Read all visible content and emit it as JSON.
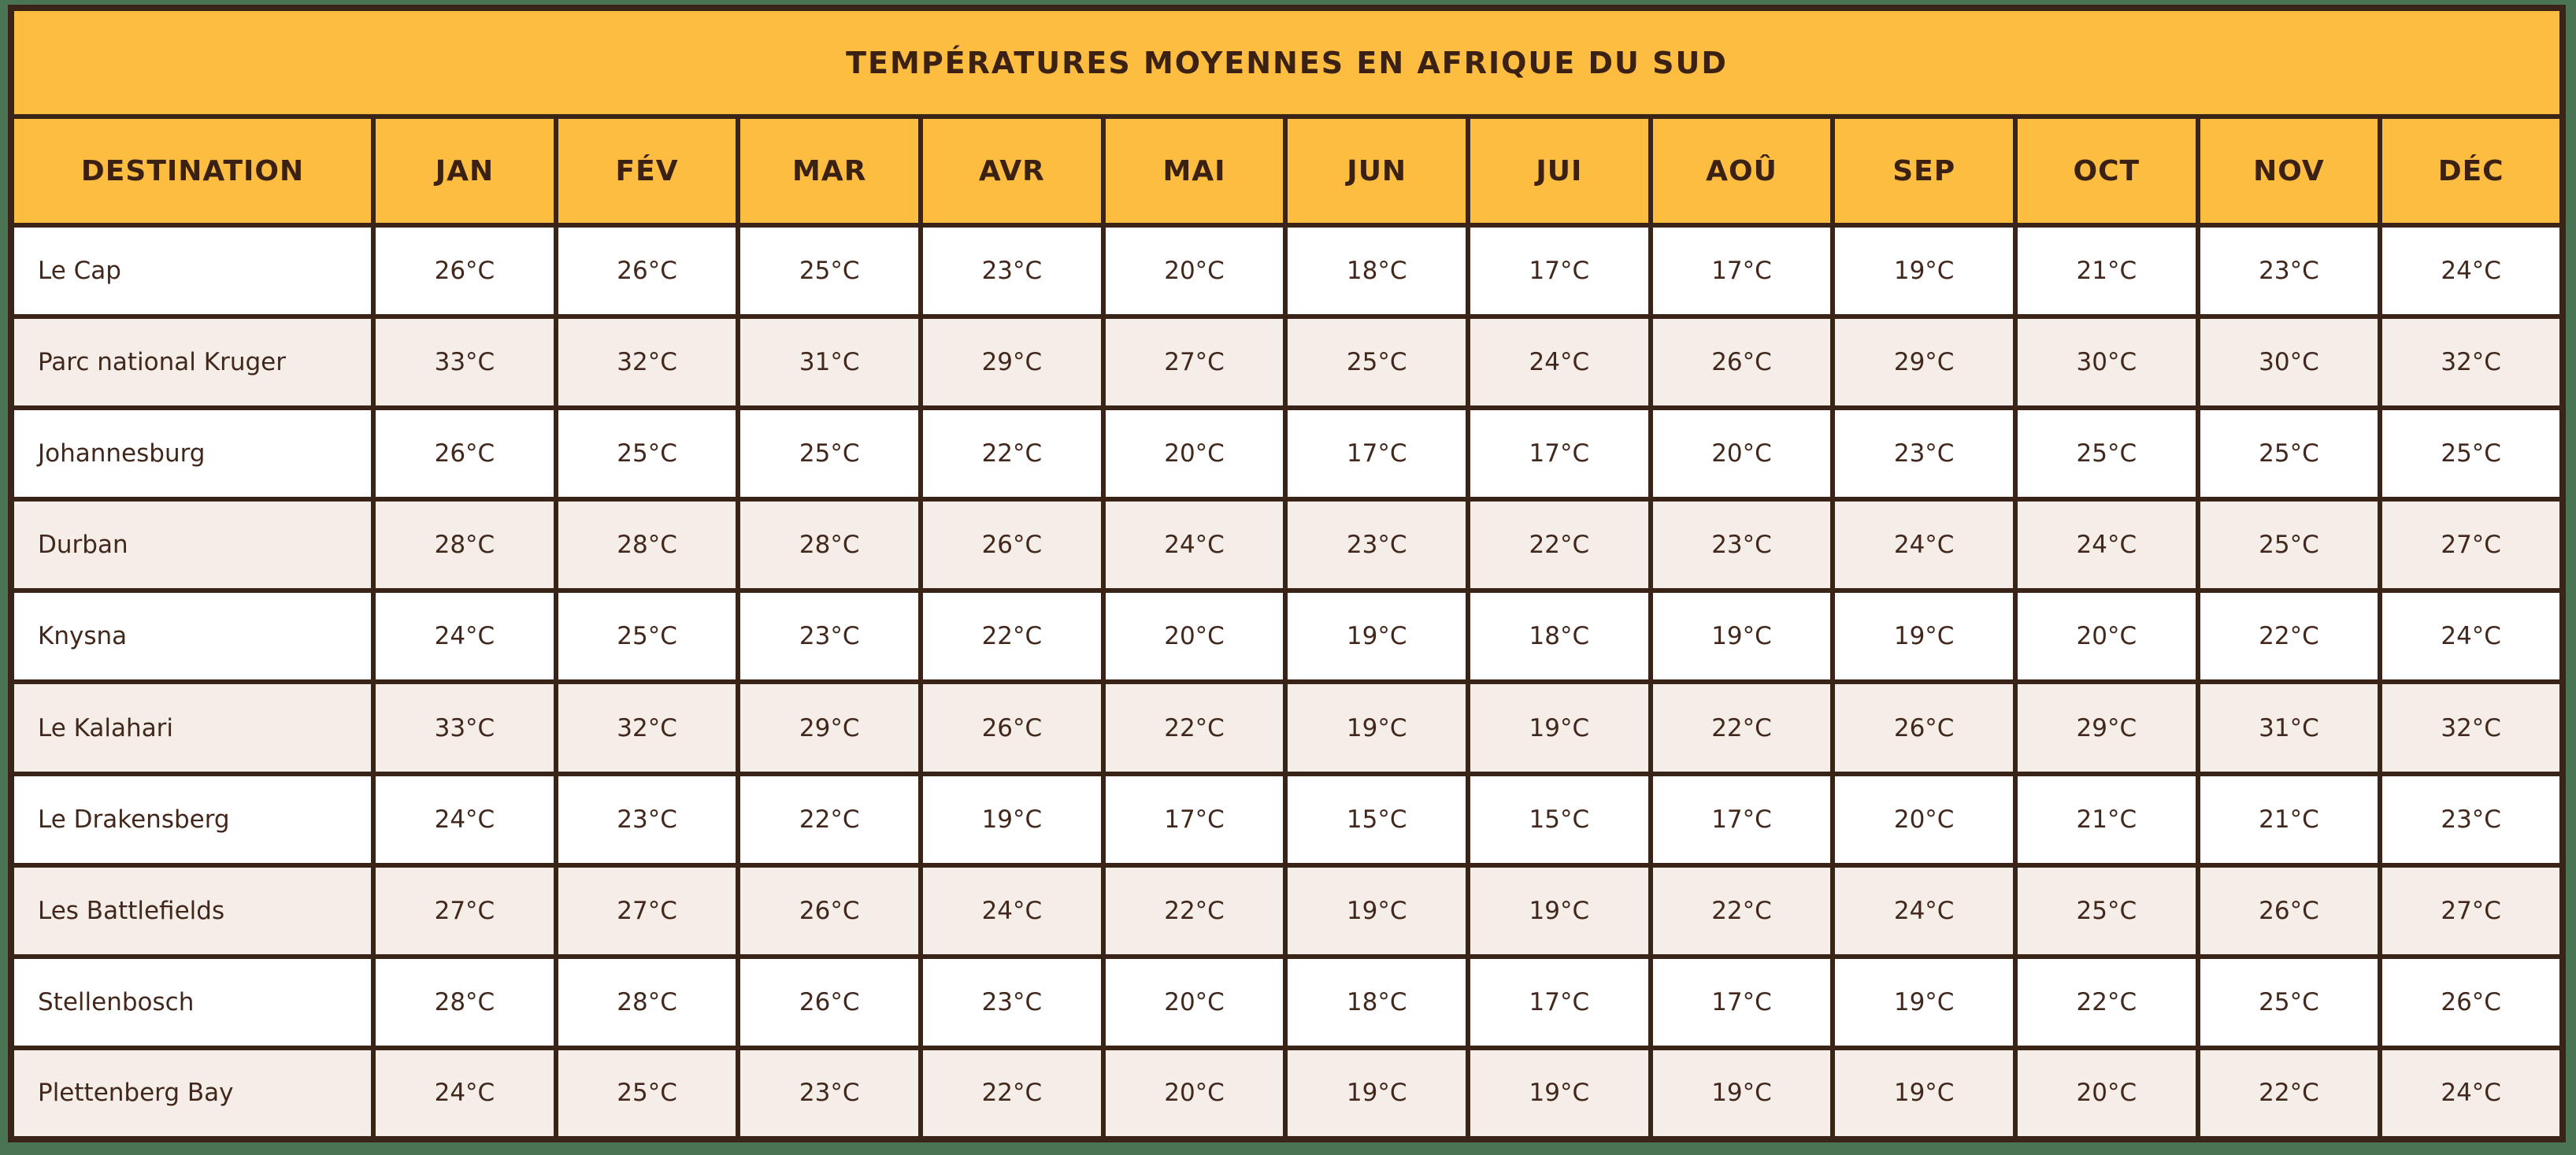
{
  "title": "TEMPÉRATURES MOYENNES EN AFRIQUE DU SUD",
  "table": {
    "destination_header": "DESTINATION"
  },
  "chart_data": {
    "type": "table",
    "title": "TEMPÉRATURES MOYENNES EN AFRIQUE DU SUD",
    "categories": [
      "JAN",
      "FÉV",
      "MAR",
      "AVR",
      "MAI",
      "JUN",
      "JUI",
      "AOÛ",
      "SEP",
      "OCT",
      "NOV",
      "DÉC"
    ],
    "unit": "°C",
    "series": [
      {
        "name": "Le Cap",
        "values": [
          26,
          26,
          25,
          23,
          20,
          18,
          17,
          17,
          19,
          21,
          23,
          24
        ]
      },
      {
        "name": "Parc national Kruger",
        "values": [
          33,
          32,
          31,
          29,
          27,
          25,
          24,
          26,
          29,
          30,
          30,
          32
        ]
      },
      {
        "name": "Johannesburg",
        "values": [
          26,
          25,
          25,
          22,
          20,
          17,
          17,
          20,
          23,
          25,
          25,
          25
        ]
      },
      {
        "name": "Durban",
        "values": [
          28,
          28,
          28,
          26,
          24,
          23,
          22,
          23,
          24,
          24,
          25,
          27
        ]
      },
      {
        "name": "Knysna",
        "values": [
          24,
          25,
          23,
          22,
          20,
          19,
          18,
          19,
          19,
          20,
          22,
          24
        ]
      },
      {
        "name": "Le Kalahari",
        "values": [
          33,
          32,
          29,
          26,
          22,
          19,
          19,
          22,
          26,
          29,
          31,
          32
        ]
      },
      {
        "name": "Le Drakensberg",
        "values": [
          24,
          23,
          22,
          19,
          17,
          15,
          15,
          17,
          20,
          21,
          21,
          23
        ]
      },
      {
        "name": "Les Battlefields",
        "values": [
          27,
          27,
          26,
          24,
          22,
          19,
          19,
          22,
          24,
          25,
          26,
          27
        ]
      },
      {
        "name": "Stellenbosch",
        "values": [
          28,
          28,
          26,
          23,
          20,
          18,
          17,
          17,
          19,
          22,
          25,
          26
        ]
      },
      {
        "name": "Plettenberg Bay",
        "values": [
          24,
          25,
          23,
          22,
          20,
          19,
          19,
          19,
          19,
          20,
          22,
          24
        ]
      }
    ]
  },
  "colors": {
    "background_green": "#4A7453",
    "header_orange": "#FDBD41",
    "border_brown": "#3A2317",
    "row_white": "#FFFFFF",
    "row_alt_beige": "#F5EDE8",
    "text_brown": "#42281C"
  }
}
